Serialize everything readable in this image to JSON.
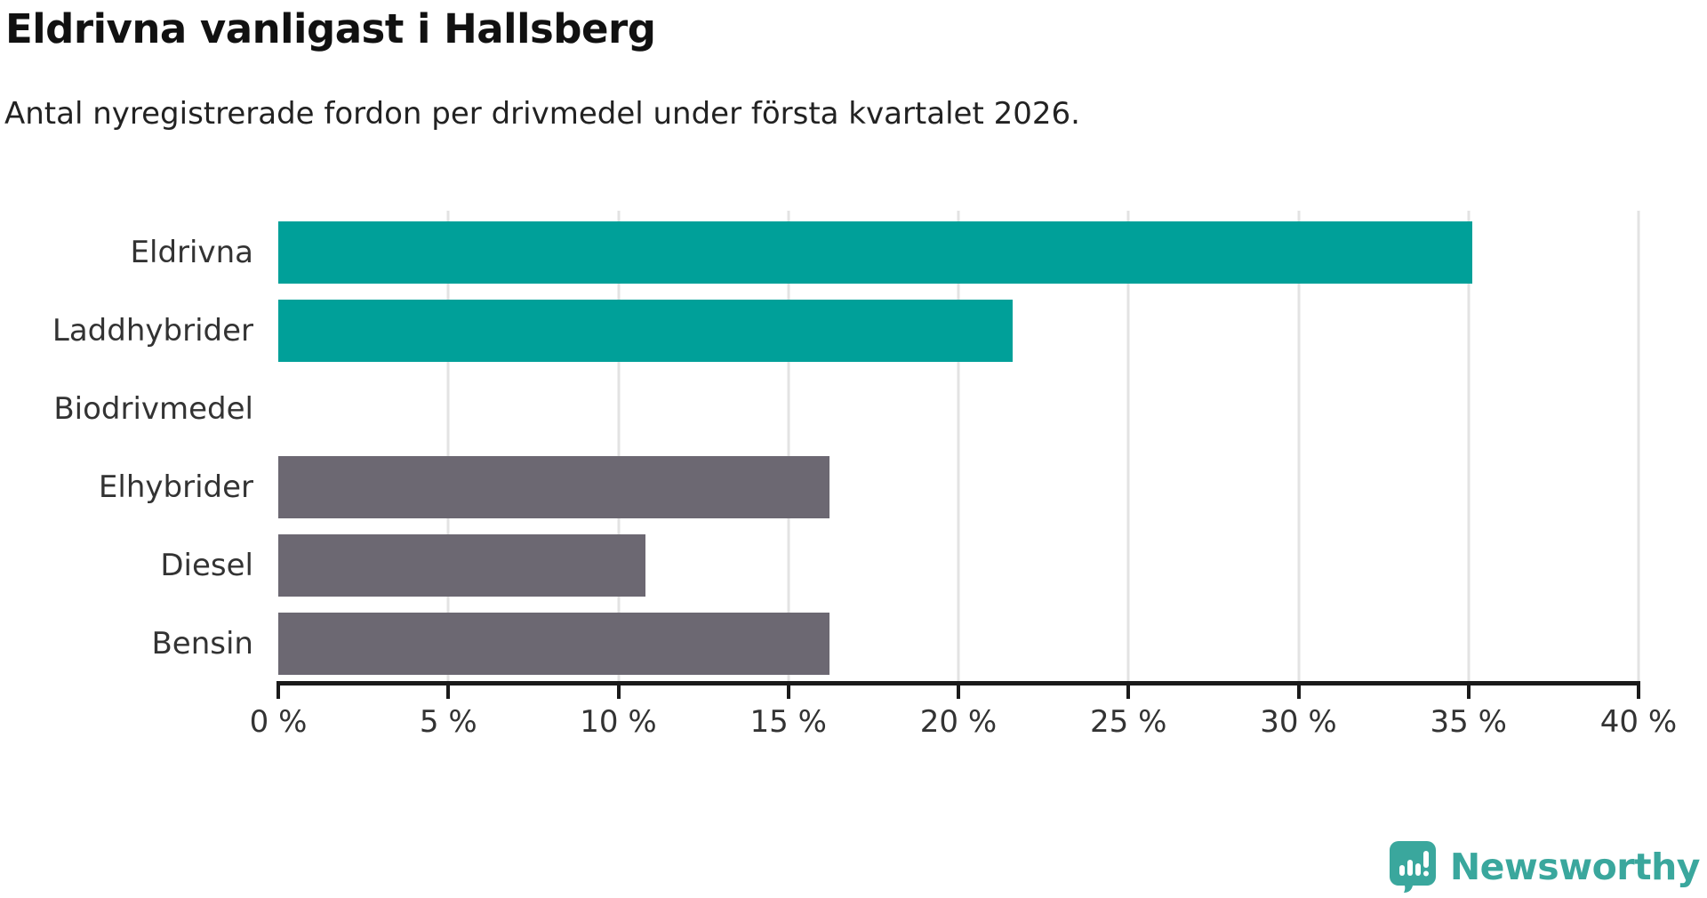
{
  "header": {
    "title": "Eldrivna vanligast i Hallsberg",
    "subtitle": "Antal nyregistrerade fordon per drivmedel under första kvartalet 2026."
  },
  "chart_data": {
    "type": "bar",
    "orientation": "horizontal",
    "title": "Eldrivna vanligast i Hallsberg",
    "subtitle": "Antal nyregistrerade fordon per drivmedel under första kvartalet 2026.",
    "categories": [
      "Eldrivna",
      "Laddhybrider",
      "Biodrivmedel",
      "Elhybrider",
      "Diesel",
      "Bensin"
    ],
    "values": [
      35.1,
      21.6,
      0,
      16.2,
      10.8,
      16.2
    ],
    "unit": "%",
    "xlabel": "",
    "ylabel": "",
    "xlim": [
      0,
      40
    ],
    "x_ticks": [
      0,
      5,
      10,
      15,
      20,
      25,
      30,
      35,
      40
    ],
    "x_tick_labels": [
      "0 %",
      "5 %",
      "10 %",
      "15 %",
      "20 %",
      "25 %",
      "30 %",
      "35 %",
      "40 %"
    ],
    "bar_colors": [
      "#00a099",
      "#00a099",
      "#00a099",
      "#6c6872",
      "#6c6872",
      "#6c6872"
    ],
    "highlight_color": "#00a099",
    "default_color": "#6c6872",
    "grid": true,
    "gridline_color": "#e3e3e3",
    "axis_color": "#1a1a1a",
    "legend": "none"
  },
  "branding": {
    "logo_text": "Newsworthy",
    "logo_color": "#3aa79d"
  }
}
